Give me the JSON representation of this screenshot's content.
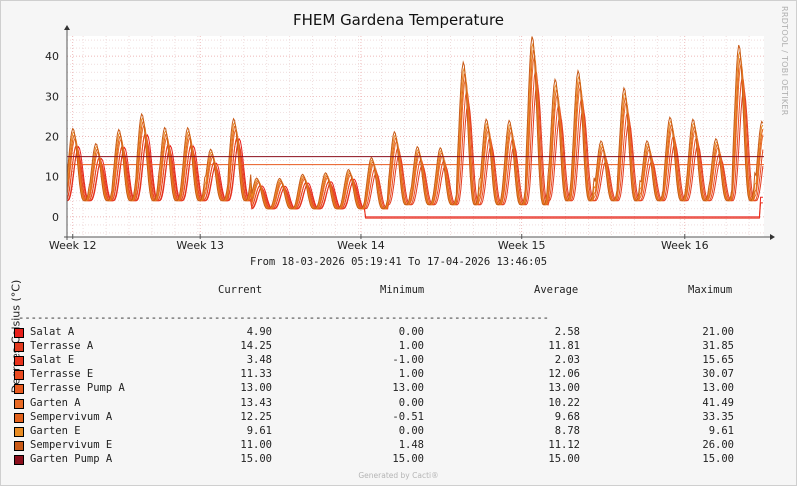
{
  "title": "FHEM Gardena Temperature",
  "side_label": "RRDTOOL / TOBI OETIKER",
  "range_text": "From 18-03-2026 05:19:41 To 17-04-2026 13:46:05",
  "credit": "Generated by Cacti®",
  "legend_headers": [
    "Current",
    "Minimum",
    "Average",
    "Maximum"
  ],
  "rule": "--------------------------------------------------------------------------------------------------------------",
  "chart_data": {
    "type": "line",
    "title": "FHEM Gardena Temperature",
    "ylabel": "Degrees Celsius (°C)",
    "ylim": [
      -5,
      45
    ],
    "y_ticks": [
      0,
      10,
      20,
      30,
      40
    ],
    "x_ticks": [
      "Week 12",
      "Week 13",
      "Week 14",
      "Week 15",
      "Week 16"
    ],
    "x_range_days": [
      0,
      30.35
    ],
    "grid": true,
    "series": [
      {
        "name": "Salat A",
        "color": "#e8201b",
        "current": "4.90",
        "min": "0.00",
        "avg": "2.58",
        "max": "21.00"
      },
      {
        "name": "Terrasse A",
        "color": "#e23a1f",
        "current": "14.25",
        "min": "1.00",
        "avg": "11.81",
        "max": "31.85"
      },
      {
        "name": "Salat E",
        "color": "#e8321c",
        "current": "3.48",
        "min": "-1.00",
        "avg": "2.03",
        "max": "15.65"
      },
      {
        "name": "Terrasse E",
        "color": "#ea4b21",
        "current": "11.33",
        "min": "1.00",
        "avg": "12.06",
        "max": "30.07"
      },
      {
        "name": "Terrasse Pump A",
        "color": "#e85a1f",
        "current": "13.00",
        "min": "13.00",
        "avg": "13.00",
        "max": "13.00"
      },
      {
        "name": "Garten A",
        "color": "#e86a24",
        "current": "13.43",
        "min": "0.00",
        "avg": "10.22",
        "max": "41.49"
      },
      {
        "name": "Sempervivum A",
        "color": "#e2621c",
        "current": "12.25",
        "min": "-0.51",
        "avg": "9.68",
        "max": "33.35"
      },
      {
        "name": "Garten E",
        "color": "#e98c23",
        "current": "9.61",
        "min": "0.00",
        "avg": "8.78",
        "max": "9.61"
      },
      {
        "name": "Sempervivum E",
        "color": "#c95a17",
        "current": "11.00",
        "min": "1.48",
        "avg": "11.12",
        "max": "26.00"
      },
      {
        "name": "Garten Pump A",
        "color": "#8b0f1d",
        "current": "15.00",
        "min": "15.00",
        "avg": "15.00",
        "max": "15.00"
      }
    ]
  }
}
